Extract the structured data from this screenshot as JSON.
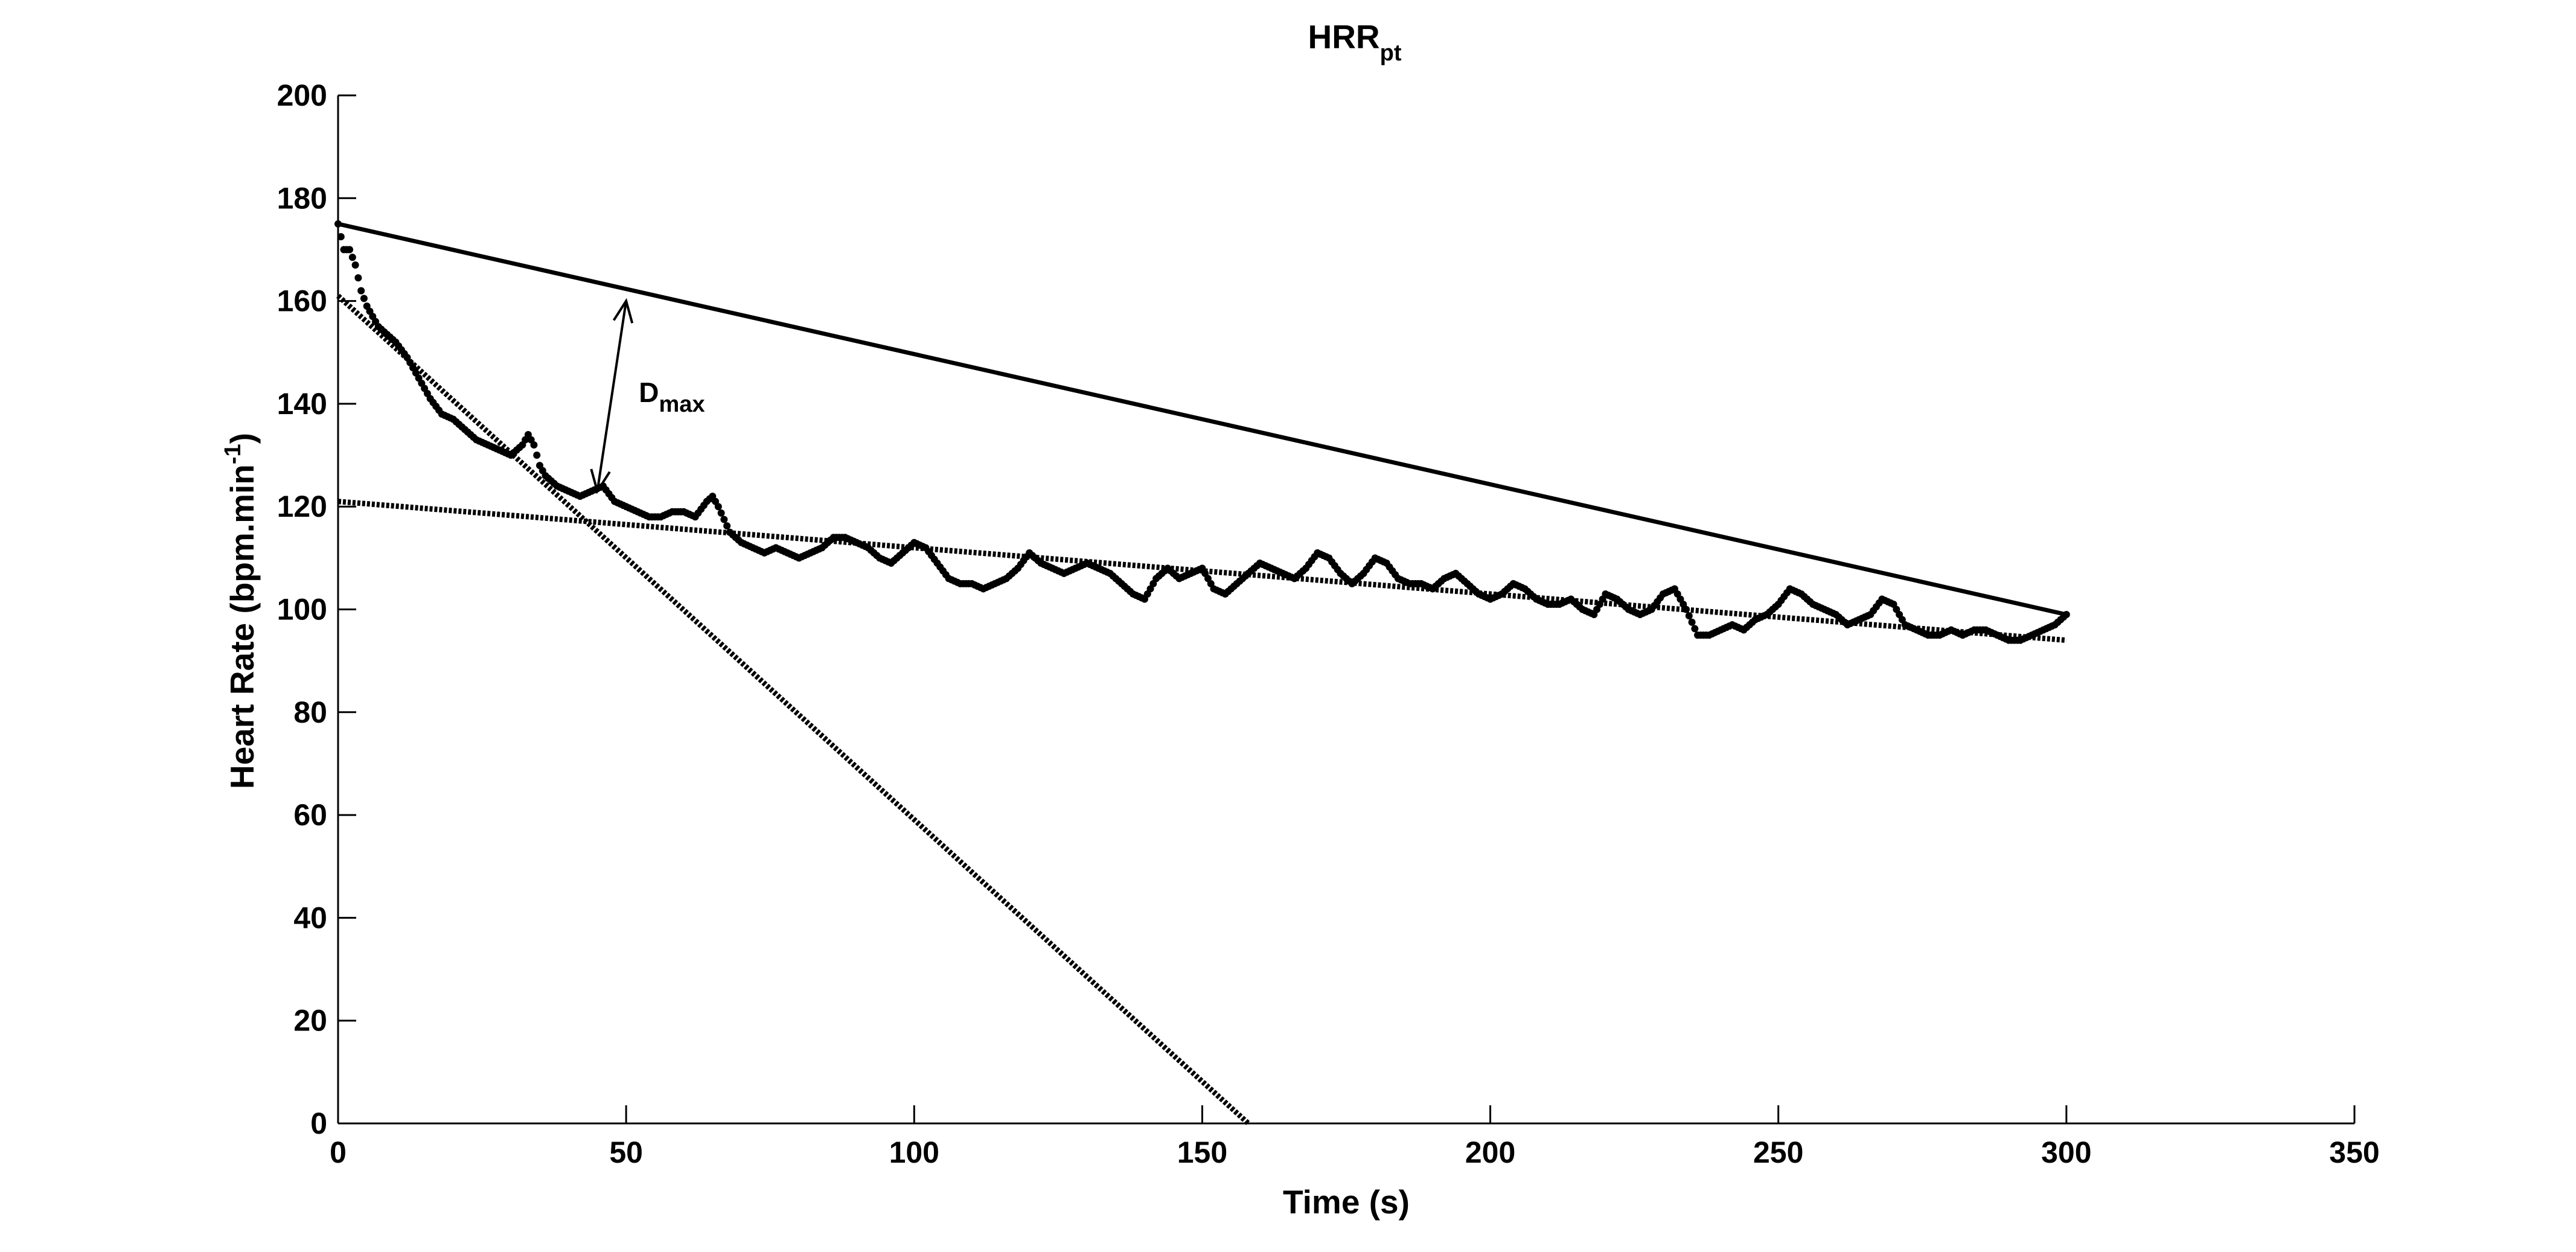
{
  "chart_data": {
    "type": "scatter",
    "title": "HRR",
    "title_subscript": "pt",
    "xlabel": "Time (s)",
    "ylabel_main": "Heart Rate (bpm.min",
    "ylabel_sup": "-1",
    "ylabel_end": ")",
    "xlim": [
      0,
      350
    ],
    "ylim": [
      0,
      200
    ],
    "xticks": [
      "0",
      "50",
      "100",
      "150",
      "200",
      "250",
      "300",
      "350"
    ],
    "yticks": [
      "0",
      "20",
      "40",
      "60",
      "80",
      "100",
      "120",
      "140",
      "160",
      "180",
      "200"
    ],
    "grid": false,
    "heart_rate_points": {
      "x": [
        0,
        1,
        2,
        3,
        4,
        5,
        6,
        7,
        8,
        9,
        10,
        12,
        14,
        16,
        18,
        20,
        22,
        24,
        26,
        28,
        30,
        32,
        33,
        34,
        35,
        36,
        38,
        40,
        42,
        44,
        46,
        48,
        50,
        52,
        54,
        56,
        58,
        60,
        62,
        64,
        65,
        66,
        68,
        70,
        72,
        74,
        76,
        78,
        80,
        82,
        84,
        86,
        88,
        90,
        92,
        94,
        96,
        98,
        100,
        102,
        104,
        106,
        108,
        110,
        112,
        114,
        116,
        118,
        120,
        122,
        124,
        126,
        128,
        130,
        132,
        134,
        136,
        138,
        140,
        142,
        144,
        146,
        148,
        150,
        152,
        154,
        156,
        158,
        160,
        162,
        164,
        166,
        168,
        170,
        172,
        174,
        176,
        178,
        180,
        182,
        184,
        186,
        188,
        190,
        192,
        194,
        196,
        198,
        200,
        202,
        204,
        206,
        208,
        210,
        212,
        214,
        216,
        218,
        220,
        222,
        224,
        226,
        228,
        230,
        232,
        234,
        236,
        238,
        240,
        242,
        244,
        246,
        248,
        250,
        252,
        254,
        256,
        258,
        260,
        262,
        264,
        266,
        268,
        270,
        272,
        274,
        276,
        278,
        280,
        282,
        284,
        286,
        288,
        290,
        292,
        294,
        296,
        298,
        300
      ],
      "y": [
        175,
        170,
        170,
        167,
        162,
        159,
        157,
        155,
        154,
        153,
        152,
        149,
        145,
        141,
        138,
        137,
        135,
        133,
        132,
        131,
        130,
        132,
        134,
        132,
        128,
        126,
        124,
        123,
        122,
        123,
        124,
        121,
        120,
        119,
        118,
        118,
        119,
        119,
        118,
        121,
        122,
        120,
        115,
        113,
        112,
        111,
        112,
        111,
        110,
        111,
        112,
        114,
        114,
        113,
        112,
        110,
        109,
        111,
        113,
        112,
        109,
        106,
        105,
        105,
        104,
        105,
        106,
        108,
        111,
        109,
        108,
        107,
        108,
        109,
        108,
        107,
        105,
        103,
        102,
        106,
        108,
        106,
        107,
        108,
        104,
        103,
        105,
        107,
        109,
        108,
        107,
        106,
        108,
        111,
        110,
        107,
        105,
        107,
        110,
        109,
        106,
        105,
        105,
        104,
        106,
        107,
        105,
        103,
        102,
        103,
        105,
        104,
        102,
        101,
        101,
        102,
        100,
        99,
        103,
        102,
        100,
        99,
        100,
        103,
        104,
        100,
        95,
        95,
        96,
        97,
        96,
        98,
        99,
        101,
        104,
        103,
        101,
        100,
        99,
        97,
        98,
        99,
        102,
        101,
        97,
        96,
        95,
        95,
        96,
        95,
        96,
        96,
        95,
        94,
        94,
        95,
        96,
        97,
        99
      ]
    },
    "chord_line": {
      "x": [
        0,
        300
      ],
      "y": [
        175,
        99
      ]
    },
    "fast_phase_fit": {
      "x": [
        0,
        158
      ],
      "y": [
        161,
        0
      ]
    },
    "slow_phase_fit": {
      "x": [
        0,
        300
      ],
      "y": [
        121,
        94
      ]
    },
    "annotation": {
      "text": "D",
      "subscript": "max",
      "arrow_from": {
        "x": 45,
        "y": 123
      },
      "arrow_to": {
        "x": 50,
        "y": 160
      }
    }
  }
}
